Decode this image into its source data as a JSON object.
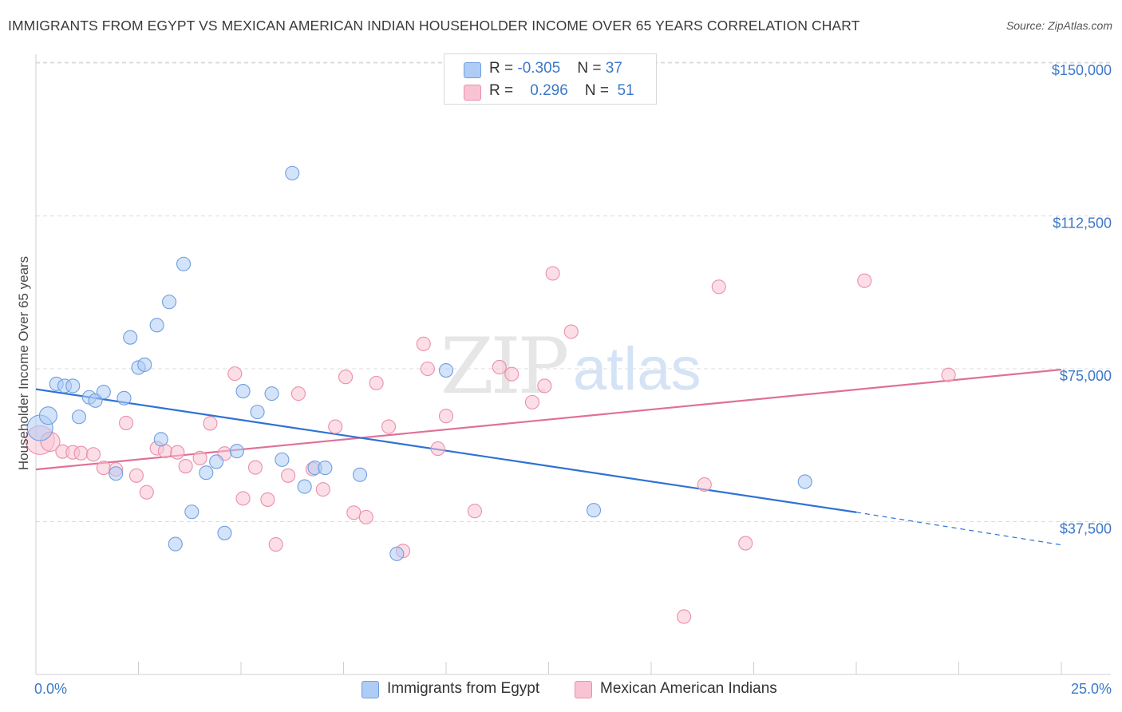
{
  "title": "IMMIGRANTS FROM EGYPT VS MEXICAN AMERICAN INDIAN HOUSEHOLDER INCOME OVER 65 YEARS CORRELATION CHART",
  "source": "Source: ZipAtlas.com",
  "watermark": {
    "zip": "ZIP",
    "atlas": "atlas"
  },
  "colors": {
    "blue_fill": "#aeccf4",
    "blue_stroke": "#6e9fe0",
    "blue_line": "#2f72d4",
    "pink_fill": "#f9c3d3",
    "pink_stroke": "#ea8fab",
    "pink_line": "#e07099",
    "tick_text": "#3c78c8"
  },
  "legend_top": {
    "rows": [
      {
        "r_label": "R = ",
        "r_value": "-0.305",
        "n_label": "N = ",
        "n_value": "37"
      },
      {
        "r_label": "R = ",
        "r_value": "0.296",
        "n_label": "N = ",
        "n_value": "51"
      }
    ]
  },
  "legend_bottom": {
    "series_a": "Immigrants from Egypt",
    "series_b": "Mexican American Indians"
  },
  "chart_data": {
    "type": "scatter",
    "title": "IMMIGRANTS FROM EGYPT VS MEXICAN AMERICAN INDIAN HOUSEHOLDER INCOME OVER 65 YEARS CORRELATION CHART",
    "xlabel": "",
    "ylabel": "Householder Income Over 65 years",
    "xlim": [
      0,
      25
    ],
    "ylim": [
      0,
      156000
    ],
    "x_tick_labels": [
      "0.0%",
      "25.0%"
    ],
    "y_ticks": [
      37500,
      75000,
      112500,
      150000
    ],
    "y_tick_labels": [
      "$37,500",
      "$75,000",
      "$112,500",
      "$150,000"
    ],
    "series": [
      {
        "name": "Immigrants from Egypt",
        "color": "blue",
        "r": -0.305,
        "n": 37,
        "trend": {
          "x0": 0,
          "y0": 70000,
          "x1": 20,
          "y1": 39800,
          "dash_to_x": 25,
          "dash_to_y": 31800
        },
        "points": [
          {
            "x": 0.1,
            "y": 60500,
            "size": 16
          },
          {
            "x": 0.3,
            "y": 63500,
            "size": 11
          },
          {
            "x": 0.5,
            "y": 71300
          },
          {
            "x": 0.7,
            "y": 70800
          },
          {
            "x": 0.9,
            "y": 70800
          },
          {
            "x": 1.05,
            "y": 63200
          },
          {
            "x": 1.3,
            "y": 68000
          },
          {
            "x": 1.45,
            "y": 67200
          },
          {
            "x": 1.65,
            "y": 69300
          },
          {
            "x": 1.95,
            "y": 49300
          },
          {
            "x": 2.15,
            "y": 67800
          },
          {
            "x": 2.3,
            "y": 82700
          },
          {
            "x": 2.5,
            "y": 75300
          },
          {
            "x": 2.65,
            "y": 76000
          },
          {
            "x": 2.95,
            "y": 85700
          },
          {
            "x": 3.05,
            "y": 57700
          },
          {
            "x": 3.25,
            "y": 91400
          },
          {
            "x": 3.4,
            "y": 32000
          },
          {
            "x": 3.6,
            "y": 100700
          },
          {
            "x": 3.8,
            "y": 39900
          },
          {
            "x": 4.15,
            "y": 49500
          },
          {
            "x": 4.4,
            "y": 52200
          },
          {
            "x": 4.6,
            "y": 34700
          },
          {
            "x": 4.9,
            "y": 54800
          },
          {
            "x": 5.05,
            "y": 69500
          },
          {
            "x": 5.4,
            "y": 64400
          },
          {
            "x": 5.75,
            "y": 68900
          },
          {
            "x": 6.0,
            "y": 52700
          },
          {
            "x": 6.25,
            "y": 123000
          },
          {
            "x": 6.55,
            "y": 46100
          },
          {
            "x": 6.8,
            "y": 50700
          },
          {
            "x": 7.05,
            "y": 50700
          },
          {
            "x": 7.9,
            "y": 49000
          },
          {
            "x": 8.8,
            "y": 29600
          },
          {
            "x": 10.0,
            "y": 74600
          },
          {
            "x": 13.6,
            "y": 40300
          },
          {
            "x": 18.75,
            "y": 47300
          }
        ]
      },
      {
        "name": "Mexican American Indians",
        "color": "pink",
        "r": 0.296,
        "n": 51,
        "trend": {
          "x0": 0,
          "y0": 50300,
          "x1": 25,
          "y1": 74800
        },
        "points": [
          {
            "x": 0.1,
            "y": 57500,
            "size": 18
          },
          {
            "x": 0.35,
            "y": 57100,
            "size": 12
          },
          {
            "x": 0.65,
            "y": 54700
          },
          {
            "x": 0.9,
            "y": 54500
          },
          {
            "x": 1.1,
            "y": 54300
          },
          {
            "x": 1.4,
            "y": 54000
          },
          {
            "x": 1.65,
            "y": 50700
          },
          {
            "x": 1.95,
            "y": 50300
          },
          {
            "x": 2.2,
            "y": 61700
          },
          {
            "x": 2.45,
            "y": 48800
          },
          {
            "x": 2.7,
            "y": 44700
          },
          {
            "x": 2.95,
            "y": 55500
          },
          {
            "x": 3.15,
            "y": 54800
          },
          {
            "x": 3.45,
            "y": 54500
          },
          {
            "x": 3.65,
            "y": 51100
          },
          {
            "x": 4.0,
            "y": 53100
          },
          {
            "x": 4.25,
            "y": 61600
          },
          {
            "x": 4.6,
            "y": 54200
          },
          {
            "x": 4.85,
            "y": 73800
          },
          {
            "x": 5.05,
            "y": 43200
          },
          {
            "x": 5.35,
            "y": 50800
          },
          {
            "x": 5.65,
            "y": 42900
          },
          {
            "x": 5.85,
            "y": 31900
          },
          {
            "x": 6.15,
            "y": 48800
          },
          {
            "x": 6.4,
            "y": 68900
          },
          {
            "x": 6.75,
            "y": 50400
          },
          {
            "x": 7.0,
            "y": 45400
          },
          {
            "x": 7.3,
            "y": 60800
          },
          {
            "x": 7.55,
            "y": 73000
          },
          {
            "x": 7.75,
            "y": 39700
          },
          {
            "x": 8.05,
            "y": 38600
          },
          {
            "x": 8.3,
            "y": 71500
          },
          {
            "x": 8.6,
            "y": 60800
          },
          {
            "x": 8.95,
            "y": 30300
          },
          {
            "x": 9.45,
            "y": 81100
          },
          {
            "x": 9.55,
            "y": 75000
          },
          {
            "x": 9.8,
            "y": 55400
          },
          {
            "x": 10.0,
            "y": 63400
          },
          {
            "x": 10.7,
            "y": 40100
          },
          {
            "x": 11.3,
            "y": 75400
          },
          {
            "x": 11.6,
            "y": 73700
          },
          {
            "x": 12.1,
            "y": 66800
          },
          {
            "x": 12.4,
            "y": 70800
          },
          {
            "x": 12.6,
            "y": 98400
          },
          {
            "x": 13.05,
            "y": 84100
          },
          {
            "x": 15.8,
            "y": 14200
          },
          {
            "x": 16.3,
            "y": 46600
          },
          {
            "x": 16.65,
            "y": 95100
          },
          {
            "x": 17.3,
            "y": 32200
          },
          {
            "x": 20.2,
            "y": 96600
          },
          {
            "x": 22.25,
            "y": 73500
          }
        ]
      }
    ]
  }
}
